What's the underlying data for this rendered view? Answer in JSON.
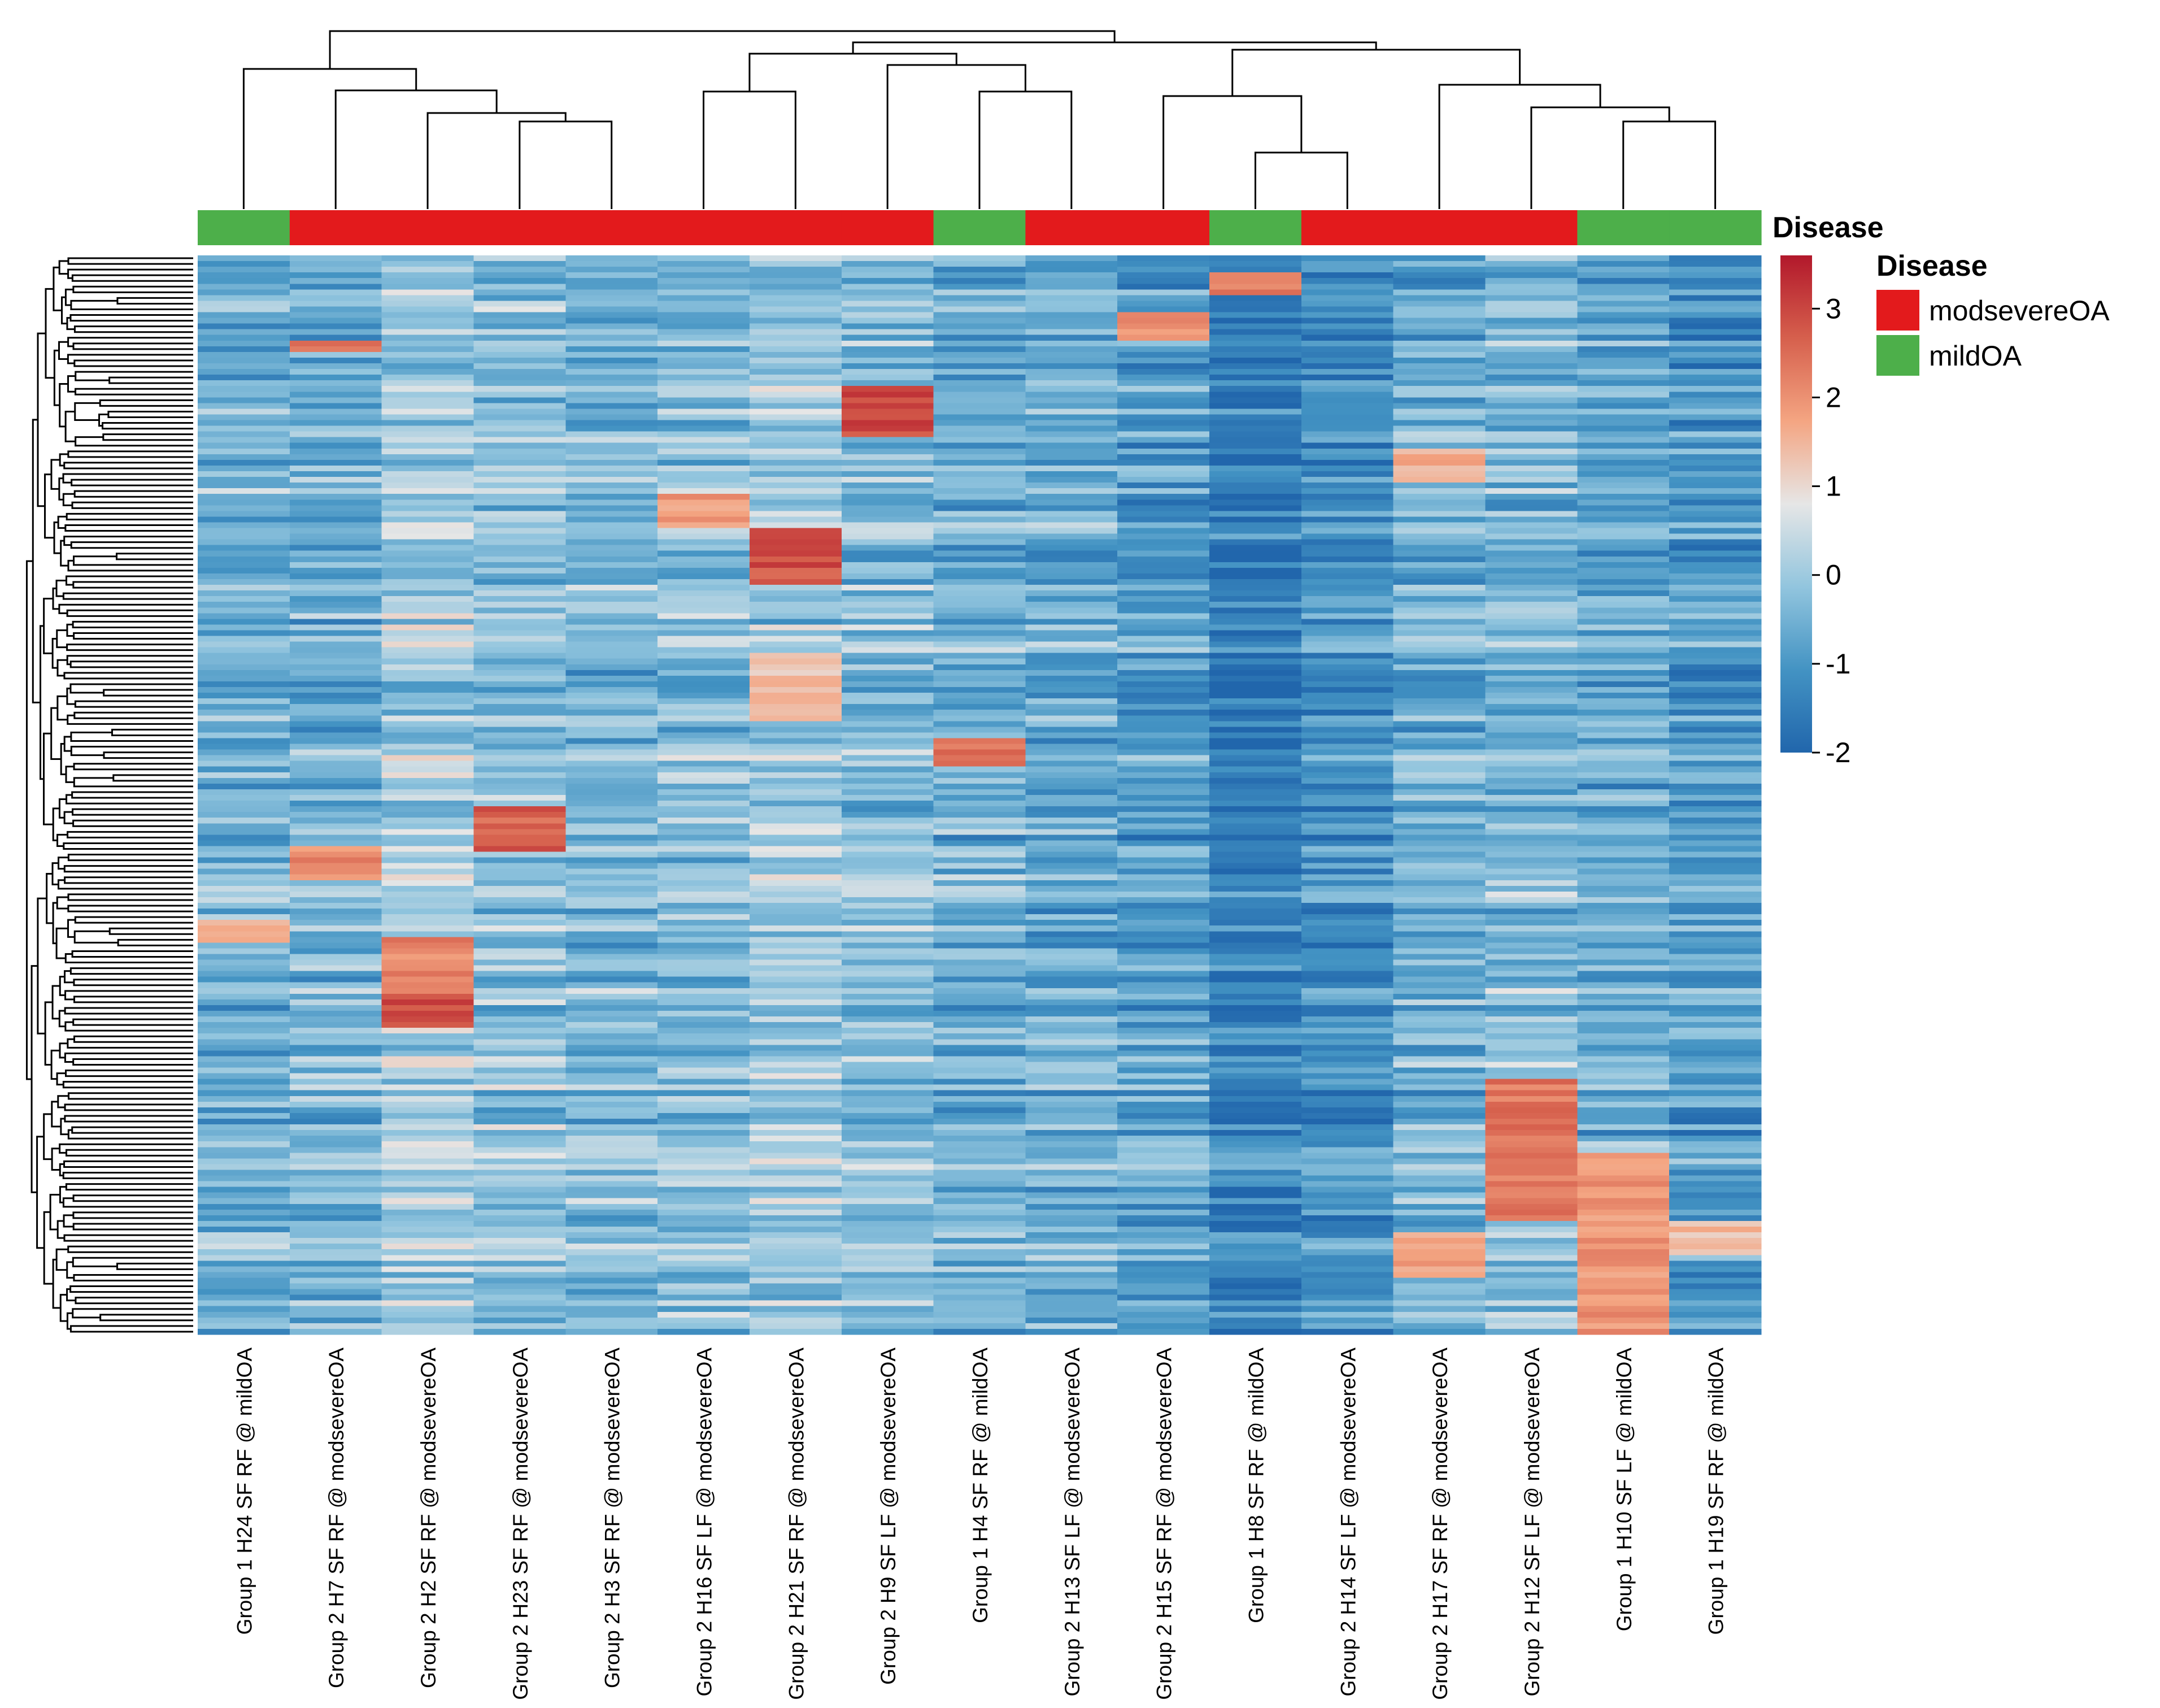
{
  "chart_data": {
    "type": "heatmap",
    "title": "",
    "xlabel": "",
    "ylabel": "",
    "row_count": 190,
    "row_dendrogram": true,
    "column_dendrogram": true,
    "columns": [
      {
        "label": "Group 1 H24 SF RF @ mildOA",
        "disease": "mildOA"
      },
      {
        "label": "Group 2 H7 SF RF @ modsevereOA",
        "disease": "modsevereOA"
      },
      {
        "label": "Group 2 H2 SF RF @ modsevereOA",
        "disease": "modsevereOA"
      },
      {
        "label": "Group 2 H23 SF RF @ modsevereOA",
        "disease": "modsevereOA"
      },
      {
        "label": "Group 2 H3 SF RF @ modsevereOA",
        "disease": "modsevereOA"
      },
      {
        "label": "Group 2 H16 SF LF @ modsevereOA",
        "disease": "modsevereOA"
      },
      {
        "label": "Group 2 H21 SF RF @ modsevereOA",
        "disease": "modsevereOA"
      },
      {
        "label": "Group 2 H9 SF LF @ modsevereOA",
        "disease": "modsevereOA"
      },
      {
        "label": "Group 1 H4 SF RF @ mildOA",
        "disease": "mildOA"
      },
      {
        "label": "Group 2 H13 SF LF @ modsevereOA",
        "disease": "modsevereOA"
      },
      {
        "label": "Group 2 H15 SF RF @ modsevereOA",
        "disease": "modsevereOA"
      },
      {
        "label": "Group 1 H8 SF RF @ mildOA",
        "disease": "mildOA"
      },
      {
        "label": "Group 2 H14 SF LF @ modsevereOA",
        "disease": "modsevereOA"
      },
      {
        "label": "Group 2 H17 SF RF @ modsevereOA",
        "disease": "modsevereOA"
      },
      {
        "label": "Group 2 H12 SF LF @ modsevereOA",
        "disease": "modsevereOA"
      },
      {
        "label": "Group 1 H10 SF LF @ mildOA",
        "disease": "mildOA"
      },
      {
        "label": "Group 1 H19 SF RF @ mildOA",
        "disease": "mildOA"
      }
    ],
    "column_bias": [
      -0.5,
      -0.45,
      0.05,
      -0.15,
      -0.35,
      -0.2,
      -0.05,
      -0.25,
      -0.55,
      -0.6,
      -0.85,
      -1.45,
      -1.1,
      -0.55,
      -0.3,
      -0.6,
      -0.95
    ],
    "hotspots": [
      {
        "col": 0,
        "row_start": 117,
        "row_end": 121,
        "value": 2.0
      },
      {
        "col": 1,
        "row_start": 15,
        "row_end": 17,
        "value": 2.6
      },
      {
        "col": 1,
        "row_start": 104,
        "row_end": 110,
        "value": 2.4
      },
      {
        "col": 2,
        "row_start": 120,
        "row_end": 131,
        "value": 2.5
      },
      {
        "col": 2,
        "row_start": 130,
        "row_end": 136,
        "value": 3.2
      },
      {
        "col": 3,
        "row_start": 97,
        "row_end": 105,
        "value": 3.0
      },
      {
        "col": 5,
        "row_start": 42,
        "row_end": 48,
        "value": 2.2
      },
      {
        "col": 6,
        "row_start": 48,
        "row_end": 58,
        "value": 3.2
      },
      {
        "col": 6,
        "row_start": 70,
        "row_end": 82,
        "value": 1.7
      },
      {
        "col": 7,
        "row_start": 23,
        "row_end": 32,
        "value": 3.3
      },
      {
        "col": 8,
        "row_start": 85,
        "row_end": 90,
        "value": 2.8
      },
      {
        "col": 10,
        "row_start": 10,
        "row_end": 15,
        "value": 2.3
      },
      {
        "col": 11,
        "row_start": 3,
        "row_end": 7,
        "value": 2.7
      },
      {
        "col": 13,
        "row_start": 34,
        "row_end": 40,
        "value": 2.0
      },
      {
        "col": 13,
        "row_start": 172,
        "row_end": 180,
        "value": 2.2
      },
      {
        "col": 14,
        "row_start": 145,
        "row_end": 170,
        "value": 2.7
      },
      {
        "col": 15,
        "row_start": 158,
        "row_end": 190,
        "value": 2.3
      },
      {
        "col": 16,
        "row_start": 170,
        "row_end": 176,
        "value": 1.8
      }
    ],
    "value_range": [
      -2,
      3.6
    ],
    "colorbar": {
      "ticks": [
        3,
        2,
        1,
        0,
        -1,
        -2
      ],
      "colors": [
        "#2166ac",
        "#4393c3",
        "#92c5de",
        "#e6e6e6",
        "#f4a582",
        "#d6604d",
        "#b2182b"
      ]
    }
  },
  "legend": {
    "annotation_title": "Disease",
    "title": "Disease",
    "items": [
      {
        "label": "modsevereOA",
        "color": "#e31a1c"
      },
      {
        "label": "mildOA",
        "color": "#4daf4a"
      }
    ]
  },
  "colors": {
    "modsevereOA": "#e31a1c",
    "mildOA": "#4daf4a"
  }
}
